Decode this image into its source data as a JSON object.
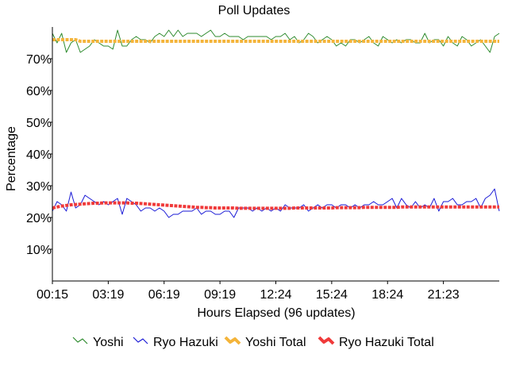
{
  "chart_data": {
    "type": "line",
    "title": "Poll Updates",
    "xlabel": "Hours Elapsed (96 updates)",
    "ylabel": "Percentage",
    "ylim": [
      0,
      80
    ],
    "y_ticks": [
      "10%",
      "20%",
      "30%",
      "40%",
      "50%",
      "60%",
      "70%"
    ],
    "y_tick_values": [
      10,
      20,
      30,
      40,
      50,
      60,
      70
    ],
    "x_ticks": [
      "00:15",
      "03:19",
      "06:19",
      "09:19",
      "12:24",
      "15:24",
      "18:24",
      "21:23"
    ],
    "x_tick_index": [
      0,
      12,
      24,
      36,
      48,
      60,
      72,
      84
    ],
    "grid": false,
    "legend_position": "bottom",
    "series": [
      {
        "name": "Yoshi",
        "color": "#2e8b2e",
        "style": "thin",
        "values": [
          78,
          75,
          78,
          72,
          75,
          76,
          72,
          73,
          74,
          76,
          75,
          74,
          74,
          73,
          79,
          74,
          74,
          76,
          77,
          76,
          76,
          75,
          77,
          78,
          77,
          79,
          77,
          79,
          77,
          78,
          78,
          78,
          77,
          78,
          79,
          77,
          77,
          78,
          77,
          77,
          77,
          76,
          77,
          77,
          77,
          77,
          77,
          76,
          77,
          77,
          78,
          76,
          77,
          75,
          76,
          78,
          77,
          75,
          76,
          77,
          76,
          74,
          75,
          74,
          76,
          76,
          75,
          76,
          77,
          75,
          74,
          77,
          76,
          75,
          76,
          75,
          76,
          76,
          75,
          75,
          78,
          75,
          76,
          76,
          74,
          77,
          75,
          74,
          77,
          76,
          74,
          75,
          76,
          74,
          72,
          77,
          78
        ]
      },
      {
        "name": "Ryo Hazuki",
        "color": "#1a1ad6",
        "style": "thin",
        "values": [
          22,
          25,
          24,
          22,
          28,
          23,
          24,
          27,
          26,
          25,
          24,
          25,
          24,
          25,
          26,
          21,
          26,
          25,
          24,
          22,
          23,
          23,
          22,
          23,
          22,
          20,
          21,
          21,
          22,
          22,
          22,
          23,
          21,
          22,
          22,
          21,
          21,
          22,
          22,
          20,
          23,
          23,
          23,
          22,
          23,
          22,
          23,
          22,
          23,
          22,
          24,
          23,
          23,
          23,
          24,
          22,
          23,
          24,
          23,
          24,
          24,
          23,
          24,
          24,
          23,
          24,
          23,
          24,
          24,
          25,
          24,
          24,
          25,
          26,
          23,
          26,
          24,
          23,
          25,
          23,
          24,
          23,
          26,
          22,
          25,
          25,
          26,
          24,
          24,
          25,
          25,
          26,
          23,
          26,
          27,
          29,
          22
        ]
      },
      {
        "name": "Yoshi Total",
        "color": "#f4b43a",
        "style": "thick",
        "values": [
          76,
          76,
          76,
          76,
          76,
          76,
          75.5,
          75.5,
          75.5,
          75.5,
          75.5,
          75.5,
          75.5,
          75.5,
          75.5,
          75.5,
          75.5,
          75.5,
          75.5,
          75.5,
          75.5,
          75.5,
          75.5,
          75.5,
          75.5,
          75.5,
          75.5,
          75.5,
          75.5,
          75.5,
          75.5,
          75.5,
          75.5,
          75.5,
          75.5,
          75.5,
          75.5,
          75.5,
          75.5,
          75.5,
          75.5,
          75.5,
          75.5,
          75.5,
          75.5,
          75.5,
          75.5,
          75.5,
          75.5,
          75.5,
          75.5,
          75.5,
          75.5,
          75.5,
          75.5,
          75.5,
          75.5,
          75.5,
          75.5,
          75.5,
          75.5,
          75.5,
          75.5,
          75.5,
          75.5,
          75.5,
          75.5,
          75.5,
          75.5,
          75.5,
          75.5,
          75.5,
          75.5,
          75.5,
          75.5,
          75.5,
          75.5,
          75.5,
          75.5,
          75.5,
          75.5,
          75.5,
          75.5,
          75.5,
          75.5,
          75.5,
          75.5,
          75.5,
          75.5,
          75.5,
          75.5,
          75.5,
          75.5,
          75.5,
          75.5,
          75.5,
          75.5
        ]
      },
      {
        "name": "Ryo Hazuki Total",
        "color": "#f03a3a",
        "style": "thick",
        "values": [
          23,
          23.3,
          23.6,
          23.8,
          24,
          24.1,
          24.2,
          24.3,
          24.4,
          24.5,
          24.5,
          24.6,
          24.6,
          24.6,
          24.6,
          24.6,
          24.6,
          24.5,
          24.5,
          24.4,
          24.3,
          24.2,
          24.1,
          24,
          23.9,
          23.8,
          23.7,
          23.6,
          23.5,
          23.4,
          23.3,
          23.2,
          23.2,
          23.1,
          23.1,
          23,
          23,
          23,
          23,
          23,
          22.9,
          22.9,
          22.9,
          22.9,
          22.9,
          22.9,
          22.9,
          22.9,
          22.9,
          22.9,
          22.9,
          22.9,
          23,
          23,
          23,
          23,
          23,
          23,
          23,
          23,
          23,
          23.1,
          23.1,
          23.1,
          23.1,
          23.1,
          23.1,
          23.2,
          23.2,
          23.2,
          23.2,
          23.2,
          23.2,
          23.2,
          23.2,
          23.3,
          23.3,
          23.3,
          23.3,
          23.3,
          23.3,
          23.3,
          23.3,
          23.3,
          23.3,
          23.3,
          23.3,
          23.3,
          23.3,
          23.3,
          23.3,
          23.3,
          23.3,
          23.3,
          23.3,
          23.3,
          23.3
        ]
      }
    ]
  }
}
